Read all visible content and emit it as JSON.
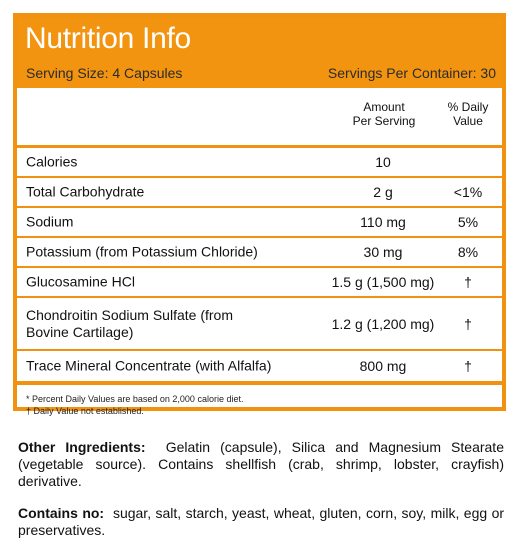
{
  "header": {
    "title": "Nutrition Info",
    "serving_size": "Serving Size: 4 Capsules",
    "servings_per_container": "Servings Per Container: 30"
  },
  "columns": {
    "amount": [
      "Amount",
      "Per Serving"
    ],
    "daily_value": [
      "% Daily",
      "Value"
    ]
  },
  "rows": [
    {
      "name": "Calories",
      "amount": "10",
      "dv": ""
    },
    {
      "name": "Total Carbohydrate",
      "amount": "2 g",
      "dv": "<1%"
    },
    {
      "name": "Sodium",
      "amount": "110 mg",
      "dv": "5%"
    },
    {
      "name": "Potassium (from Potassium Chloride)",
      "amount": "30 mg",
      "dv": "8%"
    },
    {
      "name": "Glucosamine HCl",
      "amount": "1.5 g (1,500 mg)",
      "dv": "†"
    },
    {
      "name_line1": "Chondroitin Sodium Sulfate (from",
      "name_line2": "Bovine Cartilage)",
      "amount": "1.2 g (1,200 mg)",
      "dv": "†"
    },
    {
      "name": "Trace Mineral Concentrate (with Alfalfa)",
      "amount": "800 mg",
      "dv": "†"
    }
  ],
  "footnotes": [
    "* Percent Daily Values are based on 2,000 calorie diet.",
    "† Daily Value not established."
  ],
  "other_ingredients": {
    "label": "Other Ingredients:",
    "text": "Gelatin (capsule), Silica and Magnesium Stearate (vegetable source). Contains shellfish (crab, shrimp, lobster, crayfish) derivative."
  },
  "contains_no": {
    "label": "Contains no:",
    "text": "sugar, salt, starch, yeast, wheat, gluten, corn, soy, milk, egg or preservatives."
  },
  "colors": {
    "accent": "#f39410"
  }
}
